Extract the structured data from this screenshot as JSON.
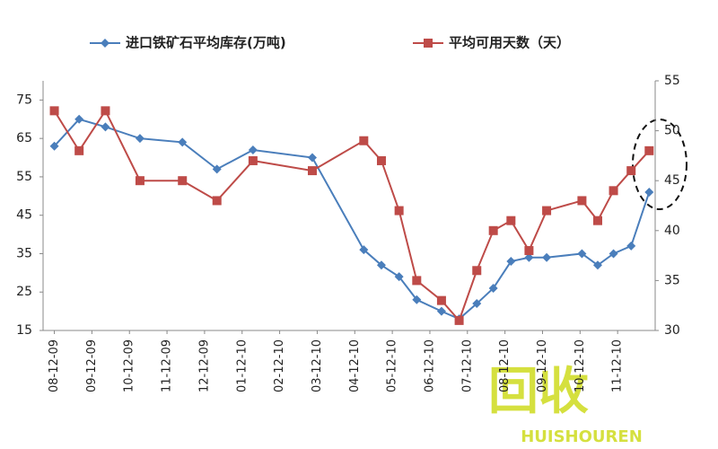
{
  "chart_data": {
    "type": "line",
    "x": [
      0,
      0.66,
      1.36,
      2.28,
      3.41,
      4.33,
      5.29,
      6.87,
      8.24,
      8.71,
      9.18,
      9.65,
      10.31,
      10.78,
      11.25,
      11.69,
      12.16,
      12.64,
      13.11,
      14.05,
      14.47,
      14.89,
      15.36,
      15.84
    ],
    "series": [
      {
        "name": "进口铁矿石平均库存(万吨)",
        "color": "#4a7ebb",
        "marker": "diamond",
        "axis": "y",
        "values": [
          63,
          70,
          68,
          65,
          64,
          57,
          62,
          60,
          36,
          32,
          29,
          23,
          20,
          18,
          22,
          26,
          33,
          34,
          34,
          35,
          32,
          35,
          37,
          51
        ]
      },
      {
        "name": "平均可用天数（天）",
        "color": "#be4b48",
        "marker": "square",
        "axis": "y2",
        "values": [
          52,
          48,
          52,
          45,
          45,
          43,
          47,
          46,
          49,
          47,
          42,
          35,
          33,
          31,
          36,
          40,
          41,
          38,
          42,
          43,
          41,
          44,
          46,
          48
        ]
      }
    ],
    "xlim": [
      -0.3,
      16
    ],
    "xticks": [
      {
        "value": 0,
        "label": "08-12-09"
      },
      {
        "value": 1,
        "label": "09-12-09"
      },
      {
        "value": 2,
        "label": "10-12-09"
      },
      {
        "value": 3,
        "label": "11-12-09"
      },
      {
        "value": 4,
        "label": "12-12-09"
      },
      {
        "value": 5,
        "label": "01-12-10"
      },
      {
        "value": 6,
        "label": "02-12-10"
      },
      {
        "value": 7,
        "label": "03-12-10"
      },
      {
        "value": 8,
        "label": "04-12-10"
      },
      {
        "value": 9,
        "label": "05-12-10"
      },
      {
        "value": 10,
        "label": "06-12-10"
      },
      {
        "value": 11,
        "label": "07-12-10"
      },
      {
        "value": 12,
        "label": "08-12-10"
      },
      {
        "value": 13,
        "label": "09-12-10"
      },
      {
        "value": 14,
        "label": "10-12-10"
      },
      {
        "value": 15,
        "label": "11-12-10"
      }
    ],
    "ylim": [
      15,
      80
    ],
    "yticks": [
      15,
      25,
      35,
      45,
      55,
      65,
      75
    ],
    "y2lim": [
      30,
      55
    ],
    "y2ticks": [
      30,
      35,
      40,
      45,
      50,
      55
    ],
    "legend": "top",
    "grid": false
  },
  "watermark": {
    "logo": "回收",
    "brand": "HUISHOUREN"
  }
}
